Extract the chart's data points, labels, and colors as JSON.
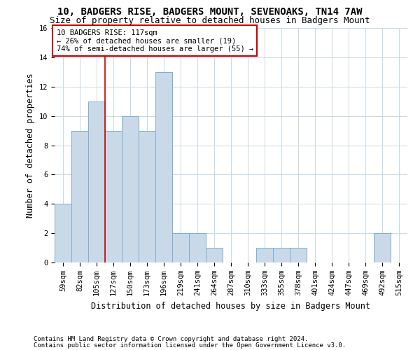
{
  "title": "10, BADGERS RISE, BADGERS MOUNT, SEVENOAKS, TN14 7AW",
  "subtitle": "Size of property relative to detached houses in Badgers Mount",
  "xlabel": "Distribution of detached houses by size in Badgers Mount",
  "ylabel": "Number of detached properties",
  "footnote1": "Contains HM Land Registry data © Crown copyright and database right 2024.",
  "footnote2": "Contains public sector information licensed under the Open Government Licence v3.0.",
  "bar_labels": [
    "59sqm",
    "82sqm",
    "105sqm",
    "127sqm",
    "150sqm",
    "173sqm",
    "196sqm",
    "219sqm",
    "241sqm",
    "264sqm",
    "287sqm",
    "310sqm",
    "333sqm",
    "355sqm",
    "378sqm",
    "401sqm",
    "424sqm",
    "447sqm",
    "469sqm",
    "492sqm",
    "515sqm"
  ],
  "bar_values": [
    4,
    9,
    11,
    9,
    10,
    9,
    13,
    2,
    2,
    1,
    0,
    0,
    1,
    1,
    1,
    0,
    0,
    0,
    0,
    2,
    0
  ],
  "bar_color": "#c9d9e8",
  "bar_edge_color": "#7bafd4",
  "grid_color": "#c8d8e8",
  "annotation_line1": "10 BADGERS RISE: 117sqm",
  "annotation_line2": "← 26% of detached houses are smaller (19)",
  "annotation_line3": "74% of semi-detached houses are larger (55) →",
  "vline_x_index": 2.5,
  "vline_color": "#cc0000",
  "annotation_box_color": "#cc0000",
  "ylim": [
    0,
    16
  ],
  "yticks": [
    0,
    2,
    4,
    6,
    8,
    10,
    12,
    14,
    16
  ],
  "background_color": "#ffffff",
  "title_fontsize": 10,
  "subtitle_fontsize": 9,
  "axis_label_fontsize": 8.5,
  "tick_fontsize": 7.5,
  "annotation_fontsize": 7.5,
  "footnote_fontsize": 6.5
}
